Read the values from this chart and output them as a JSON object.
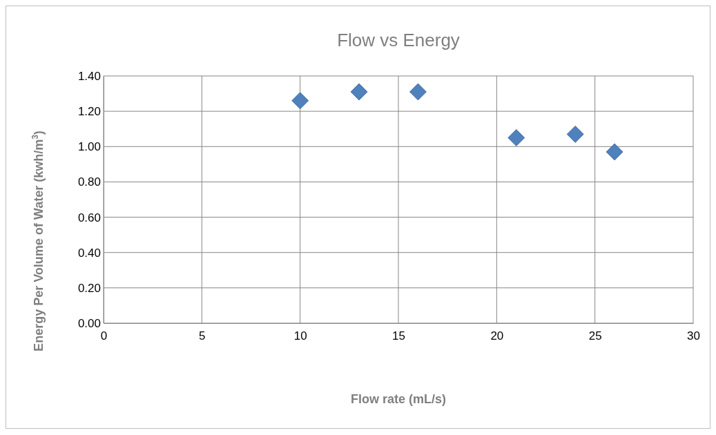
{
  "chart_data": {
    "type": "scatter",
    "title": "Flow vs Energy",
    "xlabel": "Flow rate (mL/s)",
    "ylabel": "Energy Per Volume of Water (kwh/m$^{3}$)",
    "x": [
      10,
      13,
      16,
      21,
      24,
      26
    ],
    "series": [
      {
        "color": "#4f81bd",
        "values": [
          1.26,
          1.31,
          1.31,
          1.05,
          1.07,
          0.97
        ]
      }
    ],
    "xlim": [
      0,
      30
    ],
    "xticks": [
      0,
      5,
      10,
      15,
      20,
      25,
      30
    ],
    "ylim": [
      0,
      1.4
    ],
    "yticks": [
      {
        "value": 0,
        "label": "0.00"
      },
      {
        "value": 0.2,
        "label": "0.20"
      },
      {
        "value": 0.4,
        "label": "0.40"
      },
      {
        "value": 0.6,
        "label": "0.60"
      },
      {
        "value": 0.8,
        "label": "0.80"
      },
      {
        "value": 1.0,
        "label": "1.00"
      },
      {
        "value": 1.2,
        "label": "1.20"
      },
      {
        "value": 1.4,
        "label": "1.40"
      }
    ],
    "grid": true,
    "marker": "diamond"
  }
}
